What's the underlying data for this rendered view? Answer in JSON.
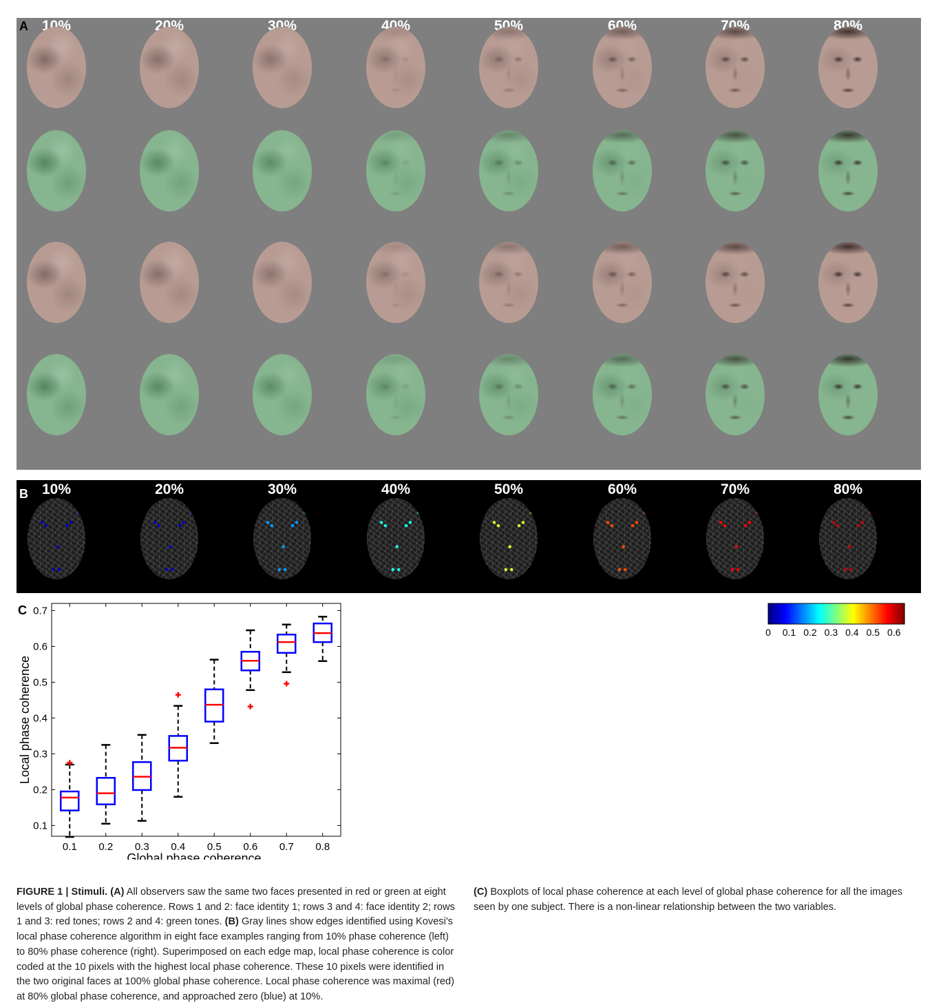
{
  "panel_a": {
    "label": "A",
    "levels": [
      "10%",
      "20%",
      "30%",
      "40%",
      "50%",
      "60%",
      "70%",
      "80%"
    ],
    "rows": [
      {
        "tone": "red"
      },
      {
        "tone": "green"
      },
      {
        "tone": "red"
      },
      {
        "tone": "green"
      }
    ],
    "colors": {
      "background": "#7f7f7f",
      "red_tone": "#b89c93",
      "green_tone": "#86b58f"
    }
  },
  "panel_b": {
    "label": "B",
    "levels": [
      "10%",
      "20%",
      "30%",
      "40%",
      "50%",
      "60%",
      "70%",
      "80%"
    ],
    "colorbar_ticks": [
      "0",
      "0.1",
      "0.2",
      "0.3",
      "0.4",
      "0.5",
      "0.6"
    ],
    "colormap": "jet"
  },
  "panel_c": {
    "label": "C"
  },
  "chart_data": {
    "type": "boxplot",
    "xlabel": "Global phase coherence",
    "ylabel": "Local phase coherence",
    "categories": [
      "0.1",
      "0.2",
      "0.3",
      "0.4",
      "0.5",
      "0.6",
      "0.7",
      "0.8"
    ],
    "xlim": [
      0.05,
      0.85
    ],
    "ylim": [
      0.07,
      0.72
    ],
    "yticks": [
      "0.1",
      "0.2",
      "0.3",
      "0.4",
      "0.5",
      "0.6",
      "0.7"
    ],
    "boxes": [
      {
        "x": 0.1,
        "whisker_low": 0.068,
        "q1": 0.142,
        "median": 0.178,
        "q3": 0.195,
        "whisker_high": 0.27,
        "outliers": [
          0.275
        ]
      },
      {
        "x": 0.2,
        "whisker_low": 0.105,
        "q1": 0.159,
        "median": 0.19,
        "q3": 0.233,
        "whisker_high": 0.325,
        "outliers": []
      },
      {
        "x": 0.3,
        "whisker_low": 0.113,
        "q1": 0.199,
        "median": 0.236,
        "q3": 0.277,
        "whisker_high": 0.353,
        "outliers": []
      },
      {
        "x": 0.4,
        "whisker_low": 0.18,
        "q1": 0.281,
        "median": 0.317,
        "q3": 0.35,
        "whisker_high": 0.434,
        "outliers": [
          0.465
        ]
      },
      {
        "x": 0.5,
        "whisker_low": 0.33,
        "q1": 0.39,
        "median": 0.437,
        "q3": 0.48,
        "whisker_high": 0.563,
        "outliers": []
      },
      {
        "x": 0.6,
        "whisker_low": 0.478,
        "q1": 0.533,
        "median": 0.56,
        "q3": 0.585,
        "whisker_high": 0.645,
        "outliers": [
          0.432
        ]
      },
      {
        "x": 0.7,
        "whisker_low": 0.528,
        "q1": 0.582,
        "median": 0.612,
        "q3": 0.633,
        "whisker_high": 0.661,
        "outliers": [
          0.496
        ]
      },
      {
        "x": 0.8,
        "whisker_low": 0.559,
        "q1": 0.612,
        "median": 0.637,
        "q3": 0.664,
        "whisker_high": 0.683,
        "outliers": []
      }
    ],
    "colors": {
      "box": "#0000ff",
      "median": "#ff0000",
      "whisker": "#000000",
      "outlier": "#ff0000"
    }
  },
  "caption": {
    "figure_label": "FIGURE 1 | Stimuli.",
    "a_label": "(A)",
    "a_text": " All observers saw the same two faces presented in red or green at eight levels of global phase coherence. Rows 1 and 2: face identity 1; rows 3 and 4: face identity 2; rows 1 and 3: red tones; rows 2 and 4: green tones.",
    "b_label": "(B)",
    "b_text": " Gray lines show edges identified using Kovesi's local phase coherence algorithm in eight face examples ranging from 10% phase coherence (left) to 80% phase coherence (right). Superimposed on each edge map, local phase coherence is color coded at the 10 pixels with the highest local phase coherence. These 10 pixels were identified in the two original faces at 100% global phase coherence. Local phase coherence was maximal (red) at 80% global phase coherence, and approached zero (blue) at 10%.",
    "c_label": "(C)",
    "c_text": " Boxplots of local phase coherence at each level of global phase coherence for all the images seen by one subject. There is a non-linear relationship between the two variables."
  }
}
